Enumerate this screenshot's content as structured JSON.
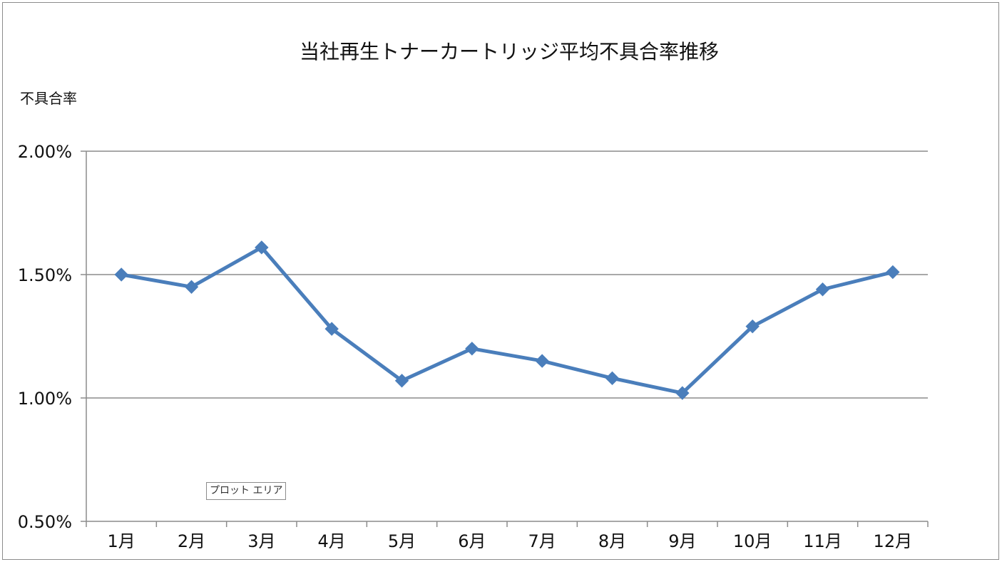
{
  "chart_data": {
    "type": "line",
    "title": "当社再生トナーカートリッジ平均不具合率推移",
    "ylabel": "不具合率",
    "xlabel": "",
    "categories": [
      "1月",
      "2月",
      "3月",
      "4月",
      "5月",
      "6月",
      "7月",
      "8月",
      "9月",
      "10月",
      "11月",
      "12月"
    ],
    "series": [
      {
        "values": [
          1.5,
          1.45,
          1.61,
          1.28,
          1.07,
          1.2,
          1.15,
          1.08,
          1.02,
          1.29,
          1.44,
          1.51
        ],
        "color": "#4a7ebb",
        "marker": "diamond"
      }
    ],
    "ylim": [
      0.5,
      2.0
    ],
    "yticks": [
      0.5,
      1.0,
      1.5,
      2.0
    ],
    "ytick_labels": [
      "0.50%",
      "1.00%",
      "1.50%",
      "2.00%"
    ],
    "grid": true,
    "legend": "none"
  },
  "tooltip": {
    "text": "プロット エリア"
  }
}
